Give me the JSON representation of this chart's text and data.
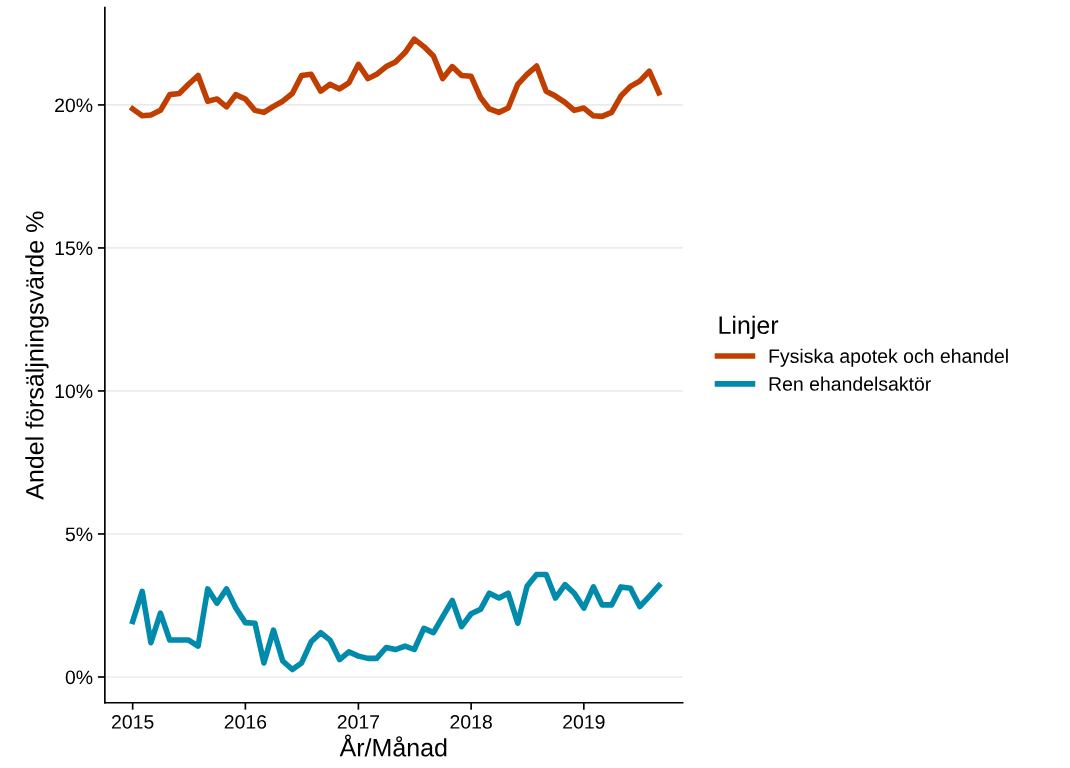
{
  "chart_data": {
    "type": "line",
    "xlabel": "År/Månad",
    "ylabel": "Andel försäljningsvärde %",
    "legend_title": "Linjer",
    "x": [
      "2015-01",
      "2015-02",
      "2015-03",
      "2015-04",
      "2015-05",
      "2015-06",
      "2015-07",
      "2015-08",
      "2015-09",
      "2015-10",
      "2015-11",
      "2015-12",
      "2016-01",
      "2016-02",
      "2016-03",
      "2016-04",
      "2016-05",
      "2016-06",
      "2016-07",
      "2016-08",
      "2016-09",
      "2016-10",
      "2016-11",
      "2016-12",
      "2017-01",
      "2017-02",
      "2017-03",
      "2017-04",
      "2017-05",
      "2017-06",
      "2017-07",
      "2017-08",
      "2017-09",
      "2017-10",
      "2017-11",
      "2017-12",
      "2018-01",
      "2018-02",
      "2018-03",
      "2018-04",
      "2018-05",
      "2018-06",
      "2018-07",
      "2018-08",
      "2018-09",
      "2018-10",
      "2018-11",
      "2018-12",
      "2019-01",
      "2019-02",
      "2019-03",
      "2019-04",
      "2019-05",
      "2019-06",
      "2019-07",
      "2019-08",
      "2019-09"
    ],
    "series": [
      {
        "name": "Fysiska apotek och ehandel",
        "color": "#c03f00",
        "values": [
          19.86,
          19.62,
          19.65,
          19.81,
          20.36,
          20.4,
          20.72,
          21.03,
          20.13,
          20.21,
          19.93,
          20.36,
          20.21,
          19.81,
          19.74,
          19.95,
          20.13,
          20.4,
          21.03,
          21.07,
          20.48,
          20.72,
          20.56,
          20.77,
          21.42,
          20.92,
          21.07,
          21.34,
          21.5,
          21.83,
          22.3,
          22.04,
          21.71,
          20.92,
          21.34,
          21.03,
          21.0,
          20.25,
          19.86,
          19.74,
          19.89,
          20.72,
          21.07,
          21.36,
          20.48,
          20.31,
          20.09,
          19.81,
          19.89,
          19.62,
          19.6,
          19.74,
          20.31,
          20.65,
          20.83,
          21.18,
          20.42
        ]
      },
      {
        "name": "Ren ehandelsaktör",
        "color": "#008aab",
        "values": [
          1.94,
          2.99,
          1.2,
          2.23,
          1.29,
          1.29,
          1.29,
          1.08,
          3.08,
          2.58,
          3.08,
          2.41,
          1.9,
          1.88,
          0.49,
          1.64,
          0.56,
          0.26,
          0.49,
          1.23,
          1.55,
          1.29,
          0.61,
          0.88,
          0.73,
          0.65,
          0.65,
          1.03,
          0.96,
          1.08,
          0.96,
          1.7,
          1.55,
          2.11,
          2.68,
          1.76,
          2.21,
          2.37,
          2.93,
          2.76,
          2.93,
          1.88,
          3.17,
          3.58,
          3.58,
          2.76,
          3.23,
          2.93,
          2.41,
          3.15,
          2.52,
          2.52,
          3.15,
          3.1,
          2.46,
          2.82,
          3.19
        ]
      }
    ],
    "xlim": [
      "2014-10-03",
      "2019-11-17"
    ],
    "xticks": [
      {
        "value": "2015-01-01",
        "label": "2015"
      },
      {
        "value": "2016-01-01",
        "label": "2016"
      },
      {
        "value": "2017-01-01",
        "label": "2017"
      },
      {
        "value": "2018-01-01",
        "label": "2018"
      },
      {
        "value": "2019-01-01",
        "label": "2019"
      }
    ],
    "ylim": [
      -0.9,
      23.4
    ],
    "yticks": [
      {
        "value": 0,
        "label": "0%"
      },
      {
        "value": 5,
        "label": "5%"
      },
      {
        "value": 10,
        "label": "10%"
      },
      {
        "value": 15,
        "label": "15%"
      },
      {
        "value": 20,
        "label": "20%"
      }
    ],
    "grid": "y",
    "legend": "right",
    "marker": "none",
    "line_style": "solid"
  }
}
